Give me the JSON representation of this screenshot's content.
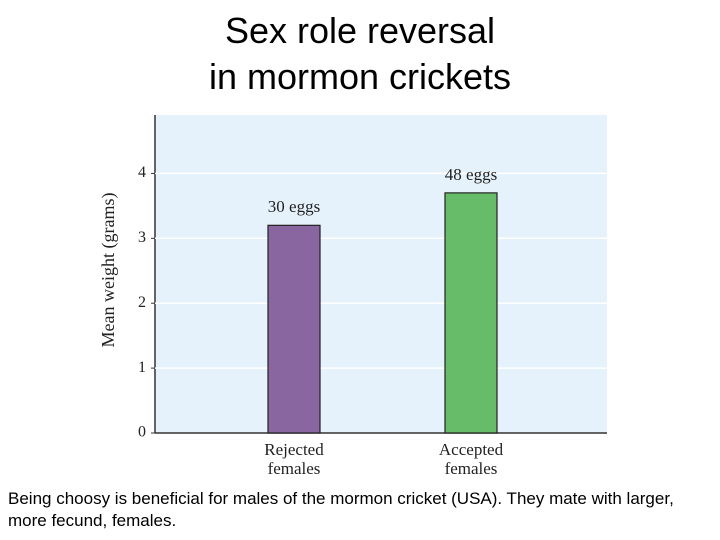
{
  "title": [
    "Sex role reversal",
    "in mormon crickets"
  ],
  "chart_data": {
    "type": "bar",
    "y_label": "Mean weight (grams)",
    "categories": [
      "Rejected females",
      "Accepted females"
    ],
    "values": [
      3.2,
      3.7
    ],
    "colors": [
      "#8a66a1",
      "#67bc6a"
    ],
    "bar_labels": [
      "30 eggs",
      "48 eggs"
    ],
    "ylim": [
      0,
      4.9
    ],
    "yticks": [
      0,
      1,
      2,
      3,
      4
    ],
    "grid": true
  },
  "caption": "Being choosy is beneficial for males of the mormon cricket (USA). They mate with larger, more fecund, females."
}
